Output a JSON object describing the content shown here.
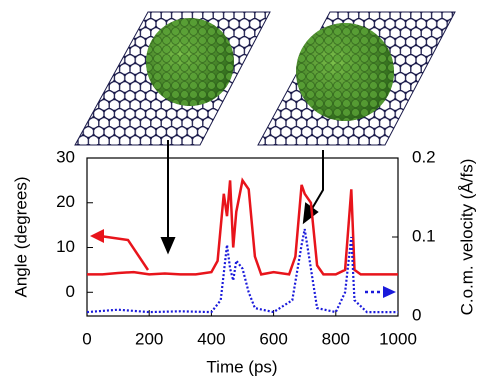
{
  "chart_data": {
    "type": "line",
    "xlabel": "Time (ps)",
    "ylabel": "Angle (degrees)",
    "y2label": "C.o.m. velocity (Å/fs)",
    "xlim": [
      0,
      1000
    ],
    "xticks": [
      0,
      200,
      400,
      600,
      800,
      1000
    ],
    "ylim": [
      -5.3,
      30
    ],
    "yticks": [
      0,
      10,
      20,
      30
    ],
    "y2lim": [
      0,
      0.2
    ],
    "y2ticks": [
      0,
      0.1,
      0.2
    ],
    "series": [
      {
        "color": "#e8141b",
        "style": "solid",
        "x": [
          0,
          50,
          100,
          150,
          200,
          250,
          300,
          350,
          400,
          420,
          440,
          450,
          460,
          470,
          480,
          500,
          520,
          540,
          560,
          600,
          650,
          670,
          690,
          700,
          720,
          740,
          760,
          800,
          830,
          850,
          860,
          880,
          950,
          1000
        ],
        "values": [
          4,
          4,
          4.3,
          4.5,
          4,
          4.2,
          4,
          4,
          4.5,
          7,
          22,
          17,
          25,
          10,
          18,
          25,
          23,
          8,
          4,
          4.5,
          4,
          8,
          24,
          22,
          20,
          6,
          4,
          4,
          5,
          23,
          5,
          4,
          4,
          4
        ]
      },
      {
        "color": "#1a1adb",
        "style": "dotted",
        "axis": "y2",
        "x": [
          0,
          100,
          200,
          300,
          400,
          430,
          450,
          460,
          470,
          480,
          500,
          520,
          540,
          600,
          660,
          690,
          700,
          720,
          740,
          800,
          830,
          850,
          860,
          900,
          1000
        ],
        "values": [
          0.005,
          0.008,
          0.005,
          0.006,
          0.005,
          0.02,
          0.09,
          0.06,
          0.045,
          0.07,
          0.06,
          0.03,
          0.01,
          0.005,
          0.02,
          0.09,
          0.11,
          0.06,
          0.01,
          0.005,
          0.03,
          0.1,
          0.02,
          0.005,
          0.005
        ]
      }
    ]
  }
}
